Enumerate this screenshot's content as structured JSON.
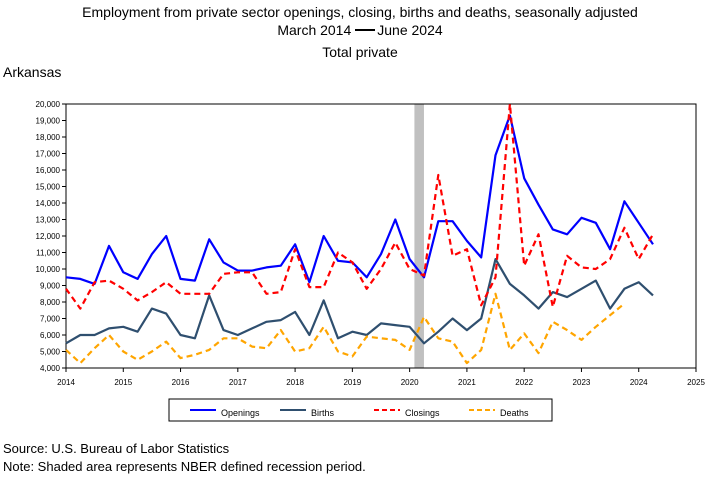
{
  "header": {
    "title": "Employment from private sector openings, closing, births and deaths, seasonally adjusted",
    "period_start": "March 2014",
    "period_end": "June 2024",
    "subtitle": "Total private",
    "region": "Arkansas"
  },
  "footer": {
    "source": "Source: U.S. Bureau of Labor Statistics",
    "note": "Note: Shaded area represents NBER defined recession period."
  },
  "colors": {
    "openings": "#0000ff",
    "births": "#2f4f6f",
    "closings": "#ff0000",
    "deaths": "#ffa500",
    "recession": "#c0c0c0"
  },
  "chart_data": {
    "type": "line",
    "xlim": [
      2014,
      2025
    ],
    "ylim": [
      4000,
      20000
    ],
    "x_ticks": [
      "2014",
      "2015",
      "2016",
      "2017",
      "2018",
      "2019",
      "2020",
      "2021",
      "2022",
      "2023",
      "2024",
      "2025"
    ],
    "y_ticks": [
      "4,000",
      "5,000",
      "6,000",
      "7,000",
      "8,000",
      "9,000",
      "10,000",
      "11,000",
      "12,000",
      "13,000",
      "14,000",
      "15,000",
      "16,000",
      "17,000",
      "18,000",
      "19,000",
      "20,000"
    ],
    "grid": false,
    "legend_position": "bottom",
    "recession": {
      "start": "2020-02",
      "end": "2020-04"
    },
    "quarters": [
      "2014-Q1",
      "2014-Q2",
      "2014-Q3",
      "2014-Q4",
      "2015-Q1",
      "2015-Q2",
      "2015-Q3",
      "2015-Q4",
      "2016-Q1",
      "2016-Q2",
      "2016-Q3",
      "2016-Q4",
      "2017-Q1",
      "2017-Q2",
      "2017-Q3",
      "2017-Q4",
      "2018-Q1",
      "2018-Q2",
      "2018-Q3",
      "2018-Q4",
      "2019-Q1",
      "2019-Q2",
      "2019-Q3",
      "2019-Q4",
      "2020-Q1",
      "2020-Q2",
      "2020-Q3",
      "2020-Q4",
      "2021-Q1",
      "2021-Q2",
      "2021-Q3",
      "2021-Q4",
      "2022-Q1",
      "2022-Q2",
      "2022-Q3",
      "2022-Q4",
      "2023-Q1",
      "2023-Q2",
      "2023-Q3",
      "2023-Q4",
      "2024-Q1",
      "2024-Q2"
    ],
    "series": [
      {
        "name": "Openings",
        "key": "openings",
        "dash": "solid",
        "values": [
          9500,
          9400,
          9100,
          11400,
          9800,
          9400,
          10900,
          12000,
          9400,
          9300,
          11800,
          10400,
          9900,
          9900,
          10100,
          10200,
          11500,
          9200,
          12000,
          10500,
          10400,
          9500,
          10900,
          13000,
          10600,
          9500,
          12900,
          12900,
          11700,
          10700,
          16900,
          19300,
          15500,
          13900,
          12400,
          12100,
          13100,
          12800,
          11200,
          14100,
          12800,
          11500
        ]
      },
      {
        "name": "Births",
        "key": "births",
        "dash": "solid",
        "values": [
          5500,
          6000,
          6000,
          6400,
          6500,
          6200,
          7600,
          7300,
          6000,
          5800,
          8400,
          6300,
          6000,
          6400,
          6800,
          6900,
          7400,
          6000,
          8100,
          5800,
          6200,
          6000,
          6700,
          6600,
          6500,
          5500,
          6200,
          7000,
          6300,
          7000,
          10600,
          9100,
          8400,
          7600,
          8600,
          8300,
          8800,
          9300,
          7600,
          8800,
          9200,
          8400
        ]
      },
      {
        "name": "Closings",
        "key": "closings",
        "dash": "dash",
        "values": [
          8800,
          7600,
          9200,
          9300,
          8800,
          8100,
          8600,
          9200,
          8500,
          8500,
          8500,
          9700,
          9800,
          9800,
          8500,
          8600,
          11200,
          8900,
          8900,
          11000,
          10400,
          8800,
          10000,
          11600,
          10000,
          9600,
          15700,
          10800,
          11200,
          7800,
          9500,
          20000,
          10200,
          12100,
          7700,
          10800,
          10100,
          10000,
          10600,
          12500,
          10600,
          12100
        ]
      },
      {
        "name": "Deaths",
        "key": "deaths",
        "dash": "dash",
        "values": [
          5100,
          4300,
          5200,
          6000,
          5000,
          4500,
          5000,
          5600,
          4600,
          4800,
          5100,
          5800,
          5800,
          5300,
          5200,
          6300,
          5000,
          5200,
          6500,
          5000,
          4700,
          5900,
          5800,
          5700,
          5100,
          7100,
          5800,
          5600,
          4300,
          5100,
          8500,
          5100,
          6100,
          4900,
          6800,
          6300,
          5700,
          6500,
          7200,
          7900,
          null,
          null
        ]
      }
    ]
  }
}
